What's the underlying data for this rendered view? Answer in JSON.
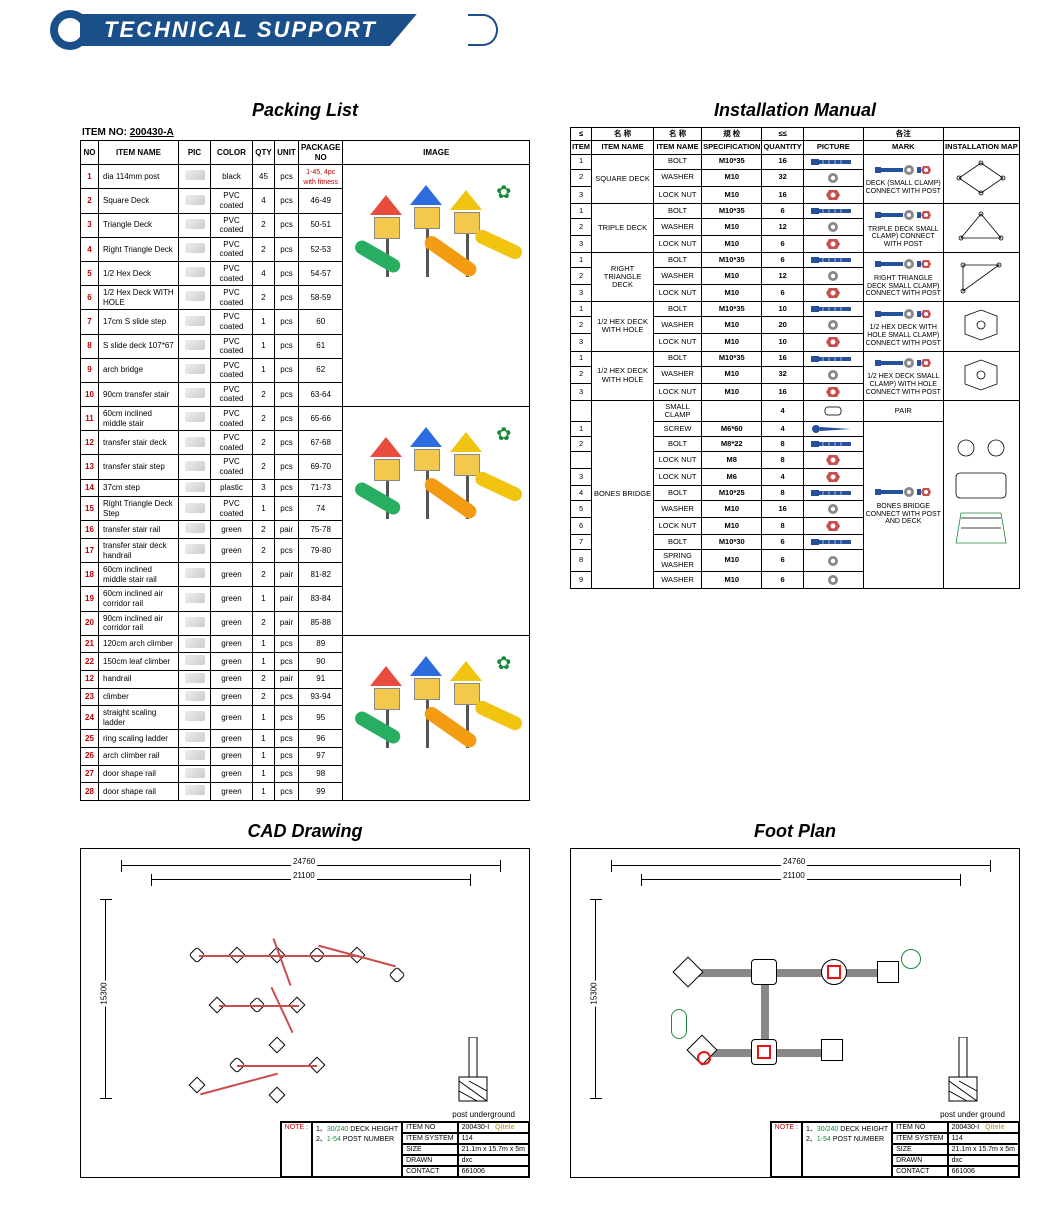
{
  "header": {
    "title": "TECHNICAL SUPPORT"
  },
  "packing": {
    "title": "Packing List",
    "item_label": "ITEM NO:",
    "item_no": "200430-A",
    "headers": [
      "NO",
      "ITEM NAME",
      "PIC",
      "COLOR",
      "QTY",
      "UNIT",
      "PACKAGE NO",
      "IMAGE"
    ],
    "pkg1_note": "1-45, 4pc with fitness",
    "rows": [
      {
        "no": "1",
        "name": "dia 114mm post",
        "color": "black",
        "qty": "45",
        "unit": "pcs",
        "pkg": "1-45"
      },
      {
        "no": "2",
        "name": "Square Deck",
        "color": "PVC coated",
        "qty": "4",
        "unit": "pcs",
        "pkg": "46-49"
      },
      {
        "no": "3",
        "name": "Triangle Deck",
        "color": "PVC coated",
        "qty": "2",
        "unit": "pcs",
        "pkg": "50-51"
      },
      {
        "no": "4",
        "name": "Right Triangle Deck",
        "color": "PVC coated",
        "qty": "2",
        "unit": "pcs",
        "pkg": "52-53"
      },
      {
        "no": "5",
        "name": "1/2 Hex Deck",
        "color": "PVC coated",
        "qty": "4",
        "unit": "pcs",
        "pkg": "54-57"
      },
      {
        "no": "6",
        "name": "1/2 Hex Deck WITH HOLE",
        "color": "PVC coated",
        "qty": "2",
        "unit": "pcs",
        "pkg": "58-59"
      },
      {
        "no": "7",
        "name": "17cm S slide step",
        "color": "PVC coated",
        "qty": "1",
        "unit": "pcs",
        "pkg": "60"
      },
      {
        "no": "8",
        "name": "S slide deck 107*67",
        "color": "PVC coated",
        "qty": "1",
        "unit": "pcs",
        "pkg": "61"
      },
      {
        "no": "9",
        "name": "arch bridge",
        "color": "PVC coated",
        "qty": "1",
        "unit": "pcs",
        "pkg": "62"
      },
      {
        "no": "10",
        "name": "90cm transfer stair",
        "color": "PVC coated",
        "qty": "2",
        "unit": "pcs",
        "pkg": "63-64"
      },
      {
        "no": "11",
        "name": "60cm inclined middle stair",
        "color": "PVC coated",
        "qty": "2",
        "unit": "pcs",
        "pkg": "65-66"
      },
      {
        "no": "12",
        "name": "transfer stair deck",
        "color": "PVC coated",
        "qty": "2",
        "unit": "pcs",
        "pkg": "67-68"
      },
      {
        "no": "13",
        "name": "transfer stair step",
        "color": "PVC coated",
        "qty": "2",
        "unit": "pcs",
        "pkg": "69-70"
      },
      {
        "no": "14",
        "name": "37cm step",
        "color": "plastic",
        "qty": "3",
        "unit": "pcs",
        "pkg": "71-73"
      },
      {
        "no": "15",
        "name": "Right Triangle Deck Step",
        "color": "PVC coated",
        "qty": "1",
        "unit": "pcs",
        "pkg": "74"
      },
      {
        "no": "16",
        "name": "transfer stair rail",
        "color": "green",
        "qty": "2",
        "unit": "pair",
        "pkg": "75-78"
      },
      {
        "no": "17",
        "name": "transfer stair deck handrail",
        "color": "green",
        "qty": "2",
        "unit": "pcs",
        "pkg": "79-80"
      },
      {
        "no": "18",
        "name": "60cm inclined middle stair rail",
        "color": "green",
        "qty": "2",
        "unit": "pair",
        "pkg": "81-82"
      },
      {
        "no": "19",
        "name": "60cm inclined air corridor rail",
        "color": "green",
        "qty": "1",
        "unit": "pair",
        "pkg": "83-84"
      },
      {
        "no": "20",
        "name": "90cm inclined air corridor rail",
        "color": "green",
        "qty": "2",
        "unit": "pair",
        "pkg": "85-88"
      },
      {
        "no": "21",
        "name": "120cm arch climber",
        "color": "green",
        "qty": "1",
        "unit": "pcs",
        "pkg": "89"
      },
      {
        "no": "22",
        "name": "150cm leaf climber",
        "color": "green",
        "qty": "1",
        "unit": "pcs",
        "pkg": "90"
      },
      {
        "no": "12",
        "name": "handrail",
        "color": "green",
        "qty": "2",
        "unit": "pair",
        "pkg": "91"
      },
      {
        "no": "23",
        "name": "climber",
        "color": "green",
        "qty": "2",
        "unit": "pcs",
        "pkg": "93-94"
      },
      {
        "no": "24",
        "name": "straight scaling ladder",
        "color": "green",
        "qty": "1",
        "unit": "pcs",
        "pkg": "95"
      },
      {
        "no": "25",
        "name": "ring scaling ladder",
        "color": "green",
        "qty": "1",
        "unit": "pcs",
        "pkg": "96"
      },
      {
        "no": "26",
        "name": "arch climber rail",
        "color": "green",
        "qty": "1",
        "unit": "pcs",
        "pkg": "97"
      },
      {
        "no": "27",
        "name": "door shape rail",
        "color": "green",
        "qty": "1",
        "unit": "pcs",
        "pkg": "98"
      },
      {
        "no": "28",
        "name": "door shape rail",
        "color": "green",
        "qty": "1",
        "unit": "pcs",
        "pkg": "99"
      }
    ],
    "playground_colors": {
      "roof_red": "#e74c3c",
      "roof_blue": "#2d6cdf",
      "roof_yellow": "#f1c40f",
      "roof_green": "#27ae60",
      "slide_green": "#27ae60",
      "slide_yellow": "#f1c40f",
      "slide_blue": "#2d6cdf",
      "slide_purple": "#8e44ad",
      "tube_orange": "#f39c12",
      "platform": "#f2c94c",
      "post": "#555555",
      "palm": "#1a8a3a"
    }
  },
  "install": {
    "title": "Installation Manual",
    "headers": {
      "row1": [
        "≤",
        "名 称",
        "名 称",
        "規 检",
        "≤≤",
        "",
        "各注",
        ""
      ],
      "row2": [
        "ITEM",
        "ITEM NAME",
        "ITEM NAME",
        "SPECIFICATION",
        "QUANTITY",
        "PICTURE",
        "MARK",
        "INSTALLATION MAP"
      ]
    },
    "groups": [
      {
        "name": "SQUARE DECK",
        "mark": "DECK (SMALL CLAMP) CONNECT WITH POST",
        "map": "square",
        "rows": [
          {
            "i": "1",
            "item": "BOLT",
            "spec": "M10*35",
            "qty": "16"
          },
          {
            "i": "2",
            "item": "WASHER",
            "spec": "M10",
            "qty": "32"
          },
          {
            "i": "3",
            "item": "LOCK NUT",
            "spec": "M10",
            "qty": "16"
          }
        ]
      },
      {
        "name": "TRIPLE DECK",
        "mark": "TRIPLE DECK SMALL CLAMP) CONNECT WITH POST",
        "map": "triple",
        "rows": [
          {
            "i": "1",
            "item": "BOLT",
            "spec": "M10*35",
            "qty": "6"
          },
          {
            "i": "2",
            "item": "WASHER",
            "spec": "M10",
            "qty": "12"
          },
          {
            "i": "3",
            "item": "LOCK NUT",
            "spec": "M10",
            "qty": "6"
          }
        ]
      },
      {
        "name": "RIGHT TRIANGLE DECK",
        "mark": "RIGHT TRIANGLE DECK SMALL CLAMP) CONNECT WITH POST",
        "map": "right-triangle",
        "rows": [
          {
            "i": "1",
            "item": "BOLT",
            "spec": "M10*35",
            "qty": "6"
          },
          {
            "i": "2",
            "item": "WASHER",
            "spec": "M10",
            "qty": "12"
          },
          {
            "i": "3",
            "item": "LOCK NUT",
            "spec": "M10",
            "qty": "6"
          }
        ]
      },
      {
        "name": "1/2 HEX DECK WITH HOLE",
        "mark": "1/2 HEX DECK WITH HOLE SMALL CLAMP) CONNECT WITH POST",
        "map": "hex-hole",
        "rows": [
          {
            "i": "1",
            "item": "BOLT",
            "spec": "M10*35",
            "qty": "10"
          },
          {
            "i": "2",
            "item": "WASHER",
            "spec": "M10",
            "qty": "20"
          },
          {
            "i": "3",
            "item": "LOCK NUT",
            "spec": "M10",
            "qty": "10"
          }
        ]
      },
      {
        "name": "1/2 HEX DECK WITH HOLE",
        "mark": "1/2 HEX DECK SMALL CLAMP) WITH HOLE CONNECT WITH POST",
        "map": "hex-hole2",
        "rows": [
          {
            "i": "1",
            "item": "BOLT",
            "spec": "M10*35",
            "qty": "16"
          },
          {
            "i": "2",
            "item": "WASHER",
            "spec": "M10",
            "qty": "32"
          },
          {
            "i": "3",
            "item": "LOCK NUT",
            "spec": "M10",
            "qty": "16"
          }
        ]
      },
      {
        "name": "BONES BRIDGE",
        "mark": "BONES BRIDGE CONNECT WITH POST AND DECK",
        "pair_label": "PAIR",
        "map": "bones",
        "rows": [
          {
            "i": "",
            "item": "SMALL CLAMP",
            "spec": "",
            "qty": "4"
          },
          {
            "i": "1",
            "item": "SCREW",
            "spec": "M6*60",
            "qty": "4"
          },
          {
            "i": "2",
            "item": "BOLT",
            "spec": "M8*22",
            "qty": "8"
          },
          {
            "i": "",
            "item": "LOCK NUT",
            "spec": "M8",
            "qty": "8"
          },
          {
            "i": "3",
            "item": "LOCK NUT",
            "spec": "M6",
            "qty": "4"
          },
          {
            "i": "4",
            "item": "BOLT",
            "spec": "M10*25",
            "qty": "8"
          },
          {
            "i": "5",
            "item": "WASHER",
            "spec": "M10",
            "qty": "16"
          },
          {
            "i": "6",
            "item": "LOCK NUT",
            "spec": "M10",
            "qty": "8"
          },
          {
            "i": "7",
            "item": "BOLT",
            "spec": "M10*30",
            "qty": "6"
          },
          {
            "i": "8",
            "item": "SPRING WASHER",
            "spec": "M10",
            "qty": "6"
          },
          {
            "i": "9",
            "item": "WASHER",
            "spec": "M10",
            "qty": "6"
          }
        ]
      }
    ],
    "hw_colors": {
      "bolt": "#24509c",
      "nut": "#c94f4f",
      "washer": "#888888",
      "screw": "#24509c"
    }
  },
  "cad": {
    "title": "CAD Drawing",
    "dim_w": "24760",
    "dim_h": "15300",
    "dim_inner": "21100",
    "post_label": "post underground",
    "title_block": {
      "note_label": "NOTE :",
      "z1": "1、",
      "z1v": "30/240",
      "z1l": "DECK HEIGHT",
      "z2": "2、",
      "z2v": "1-54",
      "z2l": "POST NUMBER",
      "rows": [
        [
          "ITEM NO",
          "200430-I"
        ],
        [
          "ITEM SYSTEM",
          "114"
        ],
        [
          "SIZE",
          "21.1m x 15.7m x 5m"
        ],
        [
          "DRAWN",
          "dxc"
        ],
        [
          "CONTACT",
          "661006"
        ]
      ],
      "brand": "Qitele"
    },
    "link_color": "#c94f4f"
  },
  "foot": {
    "title": "Foot Plan",
    "dim_w": "24760",
    "dim_h": "15300",
    "dim_inner": "21100",
    "post_label": "post under ground",
    "accent_red": "#e11",
    "accent_green": "#1a8a3a",
    "title_block": {
      "note_label": "NOTE :",
      "z1": "1、",
      "z1v": "30/240",
      "z1l": "DECK HEIGHT",
      "z2": "2、",
      "z2v": "1-54",
      "z2l": "POST NUMBER",
      "rows": [
        [
          "ITEM NO",
          "200430-I"
        ],
        [
          "ITEM SYSTEM",
          "114"
        ],
        [
          "SIZE",
          "21.1m x 15.7m x 5m"
        ],
        [
          "DRAWN",
          "dxc"
        ],
        [
          "CONTACT",
          "661006"
        ]
      ],
      "brand": "Qitele"
    }
  }
}
